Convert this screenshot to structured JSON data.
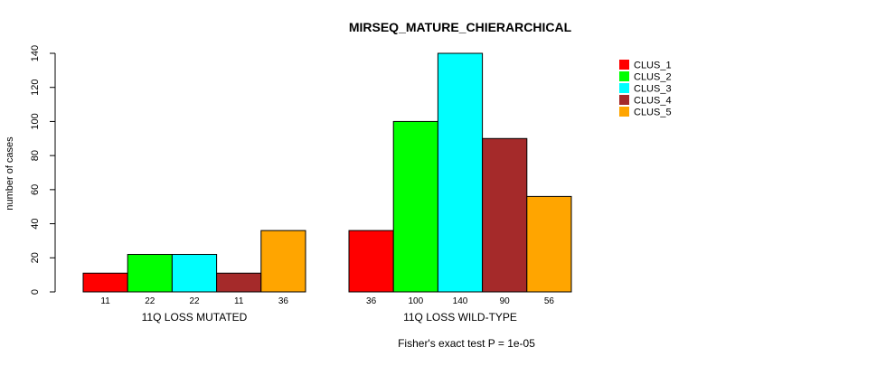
{
  "chart_data": {
    "type": "bar",
    "title": "MIRSEQ_MATURE_CHIERARCHICAL",
    "ylabel": "number of cases",
    "xlabel": "",
    "footnote": "Fisher's exact test P = 1e-05",
    "ylim": [
      0,
      140
    ],
    "yticks": [
      0,
      20,
      40,
      60,
      80,
      100,
      120,
      140
    ],
    "groups": [
      "11Q LOSS MUTATED",
      "11Q LOSS WILD-TYPE"
    ],
    "series": [
      {
        "name": "CLUS_1",
        "color": "#ff0000",
        "values": [
          11,
          36
        ]
      },
      {
        "name": "CLUS_2",
        "color": "#00ff00",
        "values": [
          22,
          100
        ]
      },
      {
        "name": "CLUS_3",
        "color": "#00ffff",
        "values": [
          22,
          140
        ]
      },
      {
        "name": "CLUS_4",
        "color": "#a52a2a",
        "values": [
          11,
          90
        ]
      },
      {
        "name": "CLUS_5",
        "color": "#ffa500",
        "values": [
          36,
          56
        ]
      }
    ],
    "legend": {
      "placement": "top-right"
    },
    "grid": false
  }
}
